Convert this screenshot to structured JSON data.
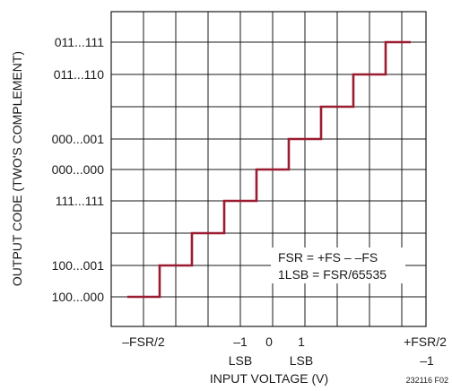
{
  "figure": {
    "id": "232116 F02",
    "ylabel": "OUTPUT CODE (TWO'S COMPLEMENT)",
    "xlabel": "INPUT VOLTAGE (V)",
    "y_tick_labels": [
      "011...111",
      "011...110",
      "000...001",
      "000...000",
      "111...111",
      "100...001",
      "100...000"
    ],
    "x_tick_labels": {
      "neg_fsr_half": "–FSR/2",
      "minus_one_a": "–1",
      "minus_one_b": "LSB",
      "zero": "0",
      "one_a": "1",
      "one_b": "LSB",
      "pos_fsr_a": "+FSR/2",
      "pos_fsr_b": "–1"
    },
    "annotation": {
      "line1": "FSR = +FS – –FS",
      "line2": "1LSB = FSR/65535"
    },
    "colors": {
      "transfer_curve": "#9b1b30",
      "grid": "#1a1a1a"
    }
  }
}
